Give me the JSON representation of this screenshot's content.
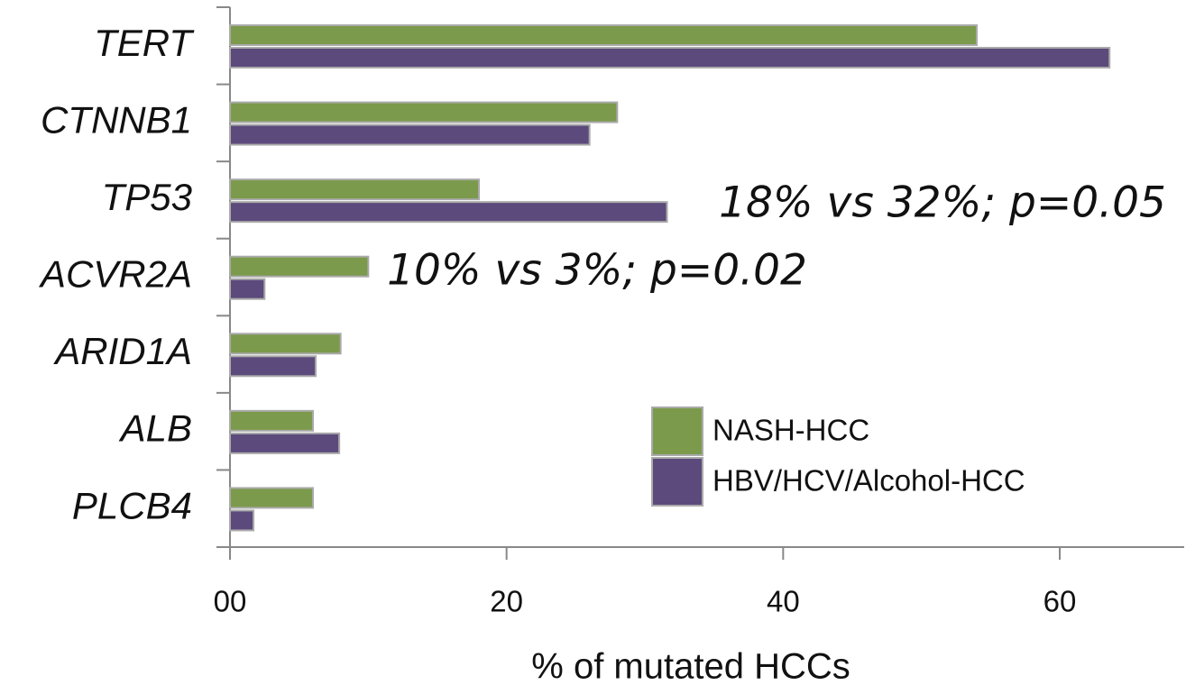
{
  "chart_data": {
    "type": "barh",
    "categories": [
      "TERT",
      "CTNNB1",
      "TP53",
      "ACVR2A",
      "ARID1A",
      "ALB",
      "PLCB4"
    ],
    "series": [
      {
        "name": "NASH-HCC",
        "color": "#7b9a4b",
        "values": [
          54,
          28,
          18,
          10,
          8,
          6,
          6
        ]
      },
      {
        "name": "HBV/HCV/Alcohol-HCC",
        "color": "#5c4a7c",
        "values": [
          63.6,
          26,
          31.6,
          2.5,
          6.2,
          7.9,
          1.7
        ]
      }
    ],
    "xlabel": "% of mutated HCCs",
    "xlim": [
      0,
      69
    ],
    "xticks": [
      {
        "value": 0,
        "label": "00"
      },
      20,
      40,
      60
    ],
    "annotations": [
      "18% vs 32%; p=0.05",
      "10% vs 3%; p=0.02"
    ],
    "legend": "lower right",
    "grid": false
  }
}
